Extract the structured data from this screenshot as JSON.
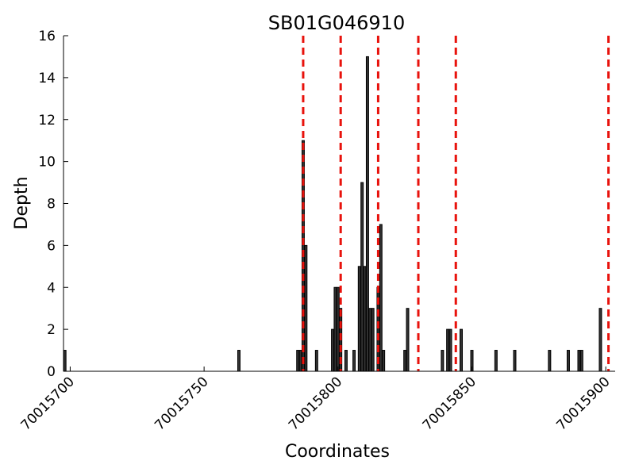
{
  "chart_data": {
    "type": "bar",
    "title": "SB01G046910",
    "xlabel": "Coordinates",
    "ylabel": "Depth",
    "xlim": [
      70015698,
      70015903
    ],
    "ylim": [
      0,
      16
    ],
    "yticks": [
      0,
      2,
      4,
      6,
      8,
      10,
      12,
      14,
      16
    ],
    "xticks": [
      70015700,
      70015750,
      70015800,
      70015850,
      70015900
    ],
    "xtick_labels": [
      "70015700",
      "70015750",
      "70015800",
      "70015850",
      "70015900"
    ],
    "grid": false,
    "bar_color": "#333333",
    "marker_color": "#e8120c",
    "bars": [
      {
        "x": 70015698,
        "y": 1
      },
      {
        "x": 70015763,
        "y": 1
      },
      {
        "x": 70015785,
        "y": 1
      },
      {
        "x": 70015786,
        "y": 1
      },
      {
        "x": 70015787,
        "y": 11
      },
      {
        "x": 70015788,
        "y": 6
      },
      {
        "x": 70015792,
        "y": 1
      },
      {
        "x": 70015798,
        "y": 2
      },
      {
        "x": 70015799,
        "y": 4
      },
      {
        "x": 70015800,
        "y": 4
      },
      {
        "x": 70015801,
        "y": 3
      },
      {
        "x": 70015803,
        "y": 1
      },
      {
        "x": 70015806,
        "y": 1
      },
      {
        "x": 70015808,
        "y": 5
      },
      {
        "x": 70015809,
        "y": 9
      },
      {
        "x": 70015810,
        "y": 5
      },
      {
        "x": 70015811,
        "y": 15
      },
      {
        "x": 70015812,
        "y": 3
      },
      {
        "x": 70015813,
        "y": 3
      },
      {
        "x": 70015815,
        "y": 4
      },
      {
        "x": 70015816,
        "y": 7
      },
      {
        "x": 70015817,
        "y": 1
      },
      {
        "x": 70015825,
        "y": 1
      },
      {
        "x": 70015826,
        "y": 3
      },
      {
        "x": 70015839,
        "y": 1
      },
      {
        "x": 70015841,
        "y": 2
      },
      {
        "x": 70015842,
        "y": 2
      },
      {
        "x": 70015846,
        "y": 2
      },
      {
        "x": 70015850,
        "y": 1
      },
      {
        "x": 70015859,
        "y": 1
      },
      {
        "x": 70015866,
        "y": 1
      },
      {
        "x": 70015879,
        "y": 1
      },
      {
        "x": 70015886,
        "y": 1
      },
      {
        "x": 70015890,
        "y": 1
      },
      {
        "x": 70015891,
        "y": 1
      },
      {
        "x": 70015898,
        "y": 3
      }
    ],
    "vertical_markers": [
      70015787,
      70015801,
      70015815,
      70015830,
      70015844,
      70015901
    ]
  }
}
